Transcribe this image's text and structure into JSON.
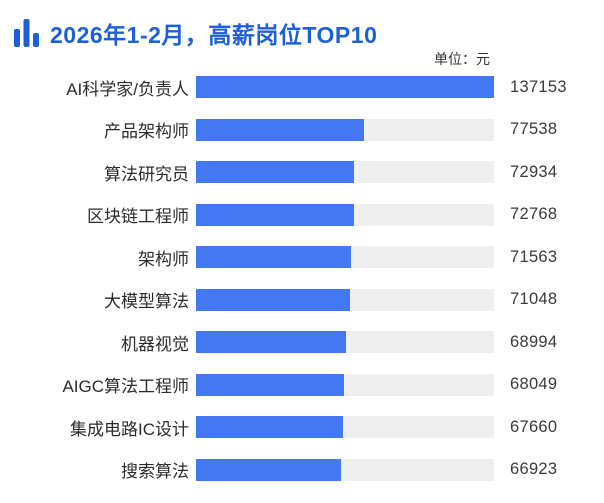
{
  "header": {
    "title": "2026年1-2月，高薪岗位TOP10",
    "icon": "bar-chart-icon",
    "unit_label": "单位：元"
  },
  "colors": {
    "title_blue": "#1E5FD9",
    "bar_blue": "#4478F2",
    "track_gray": "#EFEFEF",
    "label_color": "#2B2B2B",
    "value_color": "#3A3A3A",
    "unit_color": "#333333"
  },
  "chart_data": {
    "type": "bar",
    "orientation": "horizontal",
    "title": "2026年1-2月，高薪岗位TOP10",
    "unit": "元",
    "categories": [
      "AI科学家/负责人",
      "产品架构师",
      "算法研究员",
      "区块链工程师",
      "架构师",
      "大模型算法",
      "机器视觉",
      "AIGC算法工程师",
      "集成电路IC设计",
      "搜索算法"
    ],
    "values": [
      137153,
      77538,
      72934,
      72768,
      71563,
      71048,
      68994,
      68049,
      67660,
      66923
    ],
    "max_value": 137153,
    "value_labels_shown": true,
    "xlabel": "",
    "ylabel": "",
    "xlim": [
      0,
      137153
    ],
    "grid": "off",
    "legend": "off"
  }
}
